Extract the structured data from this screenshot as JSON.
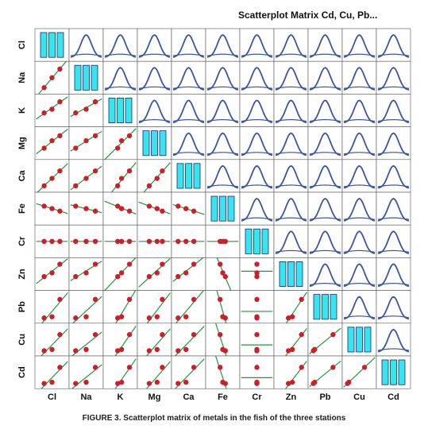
{
  "title": "Scatterplot Matrix Cd, Cu, Pb...",
  "caption": "FIGURE 3. Scatterplot matrix of metals in the fish of the three stations",
  "colors": {
    "point": "#cc1f2a",
    "fit_line": "#1e9a3a",
    "density": "#3b54a8",
    "histogram": "#38e4ee",
    "grid": "#1a2a7a",
    "frame": "#555555"
  },
  "chart_data": {
    "type": "scatter",
    "variables": [
      "Cl",
      "Na",
      "K",
      "Mg",
      "Ca",
      "Fe",
      "Cr",
      "Zn",
      "Pb",
      "Cu",
      "Cd"
    ],
    "observations": [
      [
        0.2,
        0.1,
        0.4,
        0.3,
        0.1,
        0.6,
        0.5,
        0.4,
        0.05,
        0.05,
        0.05
      ],
      [
        0.5,
        0.5,
        0.55,
        0.6,
        0.4,
        0.5,
        0.5,
        0.55,
        0.1,
        0.1,
        0.1
      ],
      [
        0.8,
        0.85,
        0.85,
        0.8,
        0.7,
        0.4,
        0.5,
        0.9,
        0.8,
        0.7,
        0.7
      ]
    ],
    "diagonal": "histogram",
    "upper_panels": "density",
    "lower_panels": "scatter with linear fit"
  }
}
